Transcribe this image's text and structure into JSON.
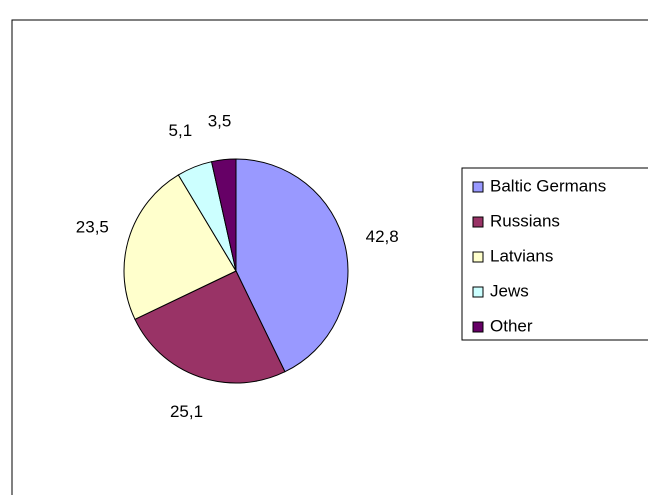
{
  "chart_data": {
    "type": "pie",
    "categories": [
      "Baltic Germans",
      "Russians",
      "Latvians",
      "Jews",
      "Other"
    ],
    "values": [
      42.8,
      25.1,
      23.5,
      5.1,
      3.5
    ],
    "value_labels": [
      "42,8",
      "25,1",
      "23,5",
      "5,1",
      "3,5"
    ],
    "colors": [
      "#9999ff",
      "#993366",
      "#ffffcc",
      "#ccffff",
      "#660066"
    ],
    "legend": "right"
  }
}
